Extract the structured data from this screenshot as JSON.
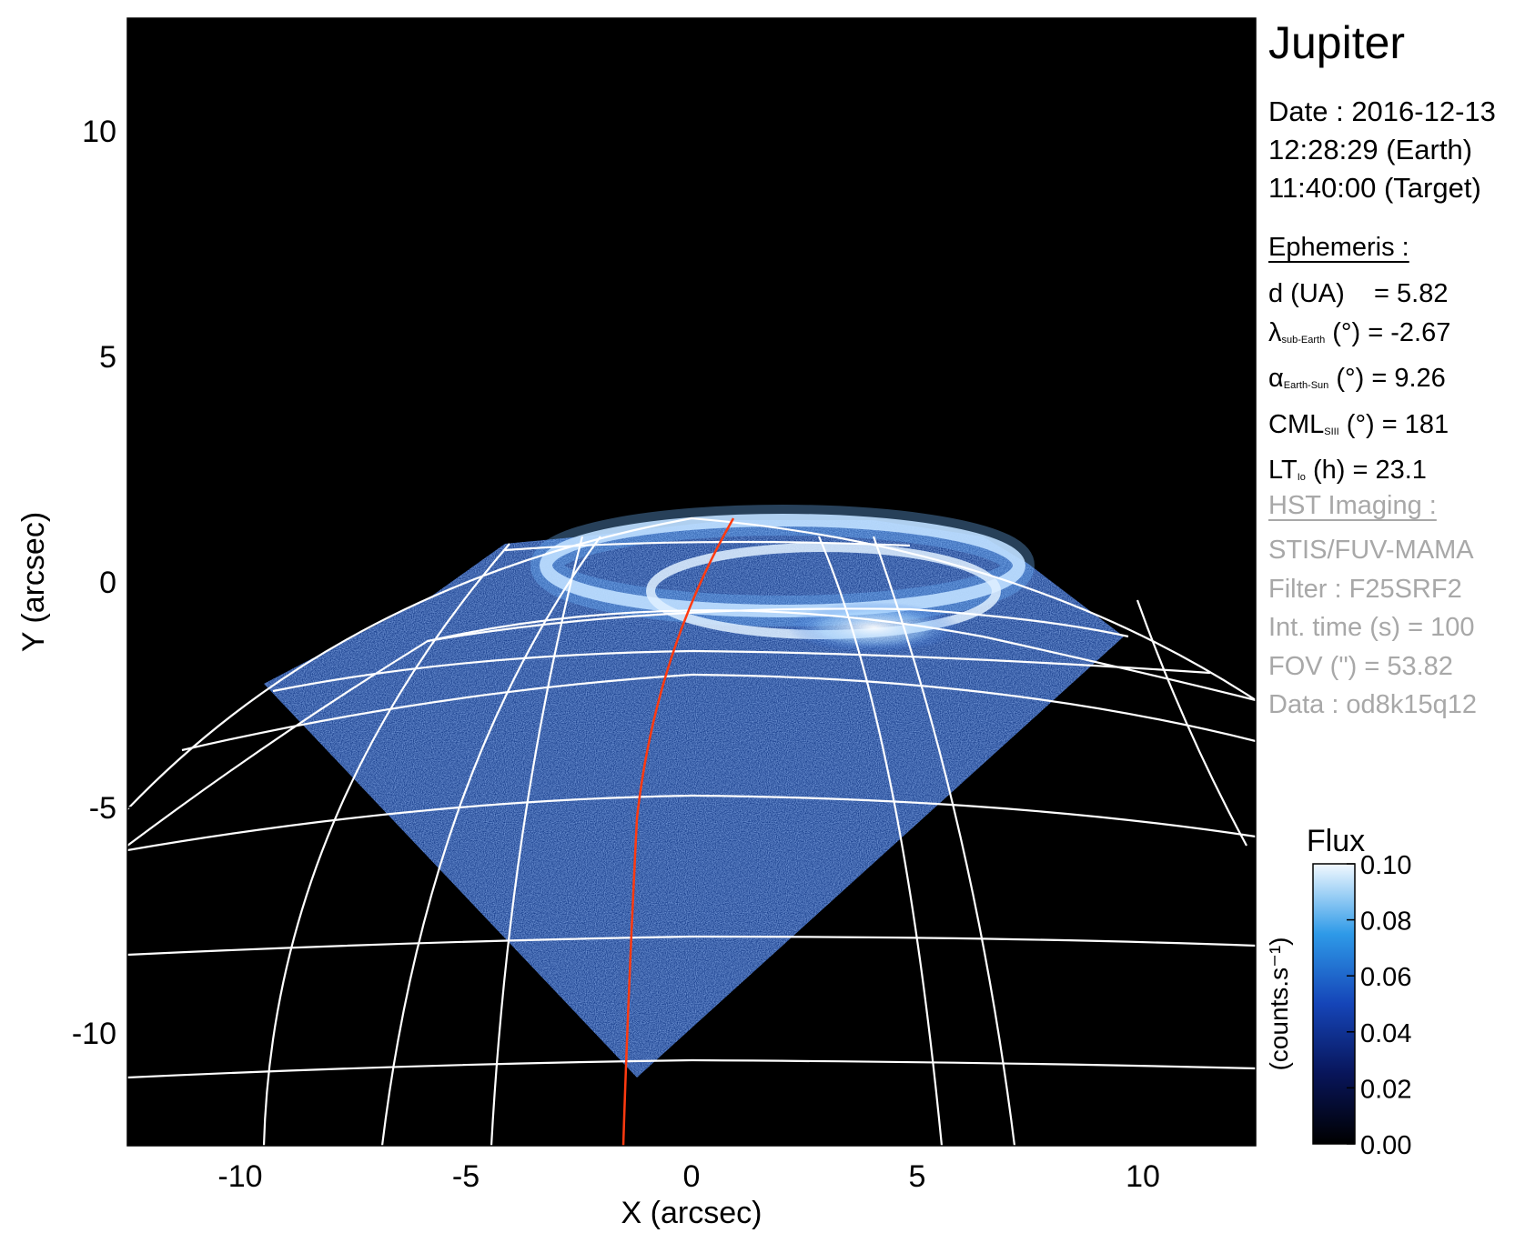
{
  "panel": {
    "title": "Jupiter",
    "date_lines": [
      "Date : 2016-12-13",
      "12:28:29 (Earth)",
      "11:40:00 (Target)"
    ],
    "ephemeris_heading": "Ephemeris :",
    "ephemeris": [
      {
        "main": "d (UA)",
        "sub": "",
        "rest": "    = 5.82"
      },
      {
        "main": "λ",
        "sub": "sub-Earth",
        "rest": " (°) = -2.67"
      },
      {
        "main": "α",
        "sub": "Earth-Sun",
        "rest": " (°) = 9.26"
      },
      {
        "main": "CML",
        "sub": "SIII",
        "rest": " (°) = 181"
      },
      {
        "main": "LT",
        "sub": "Io",
        "rest": " (h) = 23.1"
      }
    ],
    "hst_heading": "HST Imaging :",
    "hst_lines": [
      "STIS/FUV-MAMA",
      "Filter : F25SRF2",
      "Int. time (s) = 100",
      "FOV (\") = 53.82",
      "Data : od8k15q12"
    ]
  },
  "axes": {
    "xlabel": "X (arcsec)",
    "ylabel": "Y (arcsec)",
    "xticks": [
      -10,
      -5,
      0,
      5,
      10
    ],
    "yticks": [
      10,
      5,
      0,
      -5,
      -10
    ],
    "xrange": [
      -12.5,
      12.5
    ],
    "yrange": [
      -12.5,
      12.5
    ]
  },
  "colorbar": {
    "title": "Flux",
    "unit_label": "(counts.s⁻¹)",
    "ticks": [
      "0.10",
      "0.08",
      "0.06",
      "0.04",
      "0.02",
      "0.00"
    ],
    "range": [
      0.0,
      0.1
    ]
  },
  "colors": {
    "background": "#000000",
    "grid": "#ffffff",
    "meridian": "#ff3a10",
    "emission": "#1a5ed8",
    "emission_bright": "#e8f4ff"
  }
}
